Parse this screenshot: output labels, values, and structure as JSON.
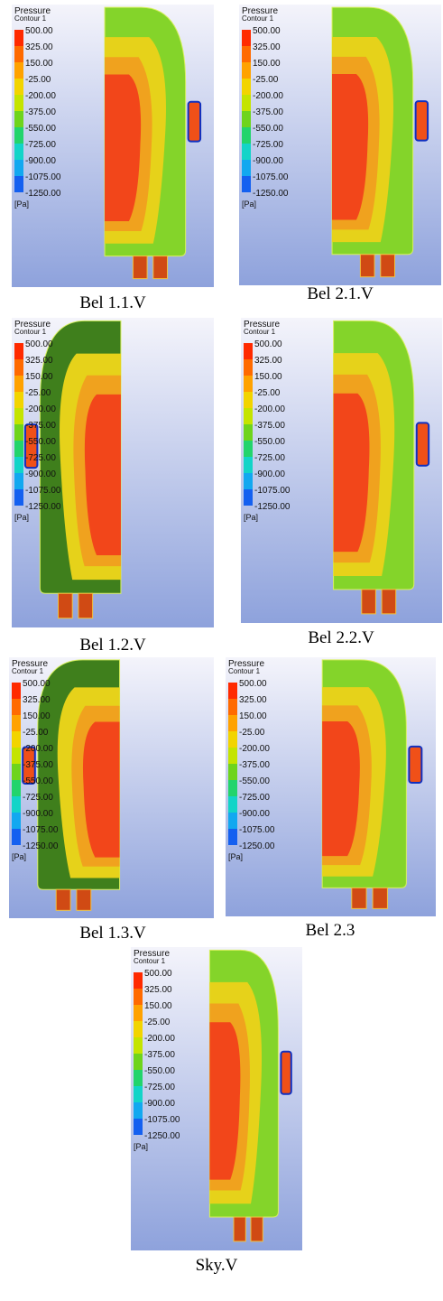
{
  "legend": {
    "title": "Pressure",
    "subtitle": "Contour 1",
    "labels": [
      "500.00",
      "325.00",
      "150.00",
      "-25.00",
      "-200.00",
      "-375.00",
      "-550.00",
      "-725.00",
      "-900.00",
      "-1075.00",
      "-1250.00"
    ],
    "unit": "[Pa]"
  },
  "panels": [
    {
      "caption": "Bel 1.1.V"
    },
    {
      "caption": "Bel 2.1.V"
    },
    {
      "caption": "Bel 1.2.V"
    },
    {
      "caption": "Bel 2.2.V"
    },
    {
      "caption": "Bel 1.3.V"
    },
    {
      "caption": "Bel 2.3"
    },
    {
      "caption": "Sky.V"
    }
  ]
}
